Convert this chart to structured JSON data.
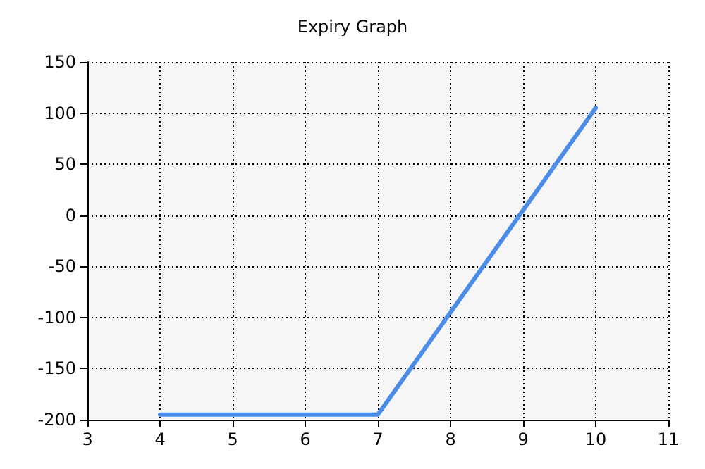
{
  "chart_data": {
    "type": "line",
    "title": "Expiry Graph",
    "x": [
      4,
      7,
      10
    ],
    "series": [
      {
        "color": "#4a8ce8",
        "values": [
          -195,
          -195,
          105
        ]
      }
    ],
    "xlim": [
      3,
      11
    ],
    "xticks": [
      3,
      4,
      5,
      6,
      7,
      8,
      9,
      10,
      11
    ],
    "ylim": [
      -200,
      150
    ],
    "yticks": [
      -200,
      -150,
      -100,
      -50,
      0,
      50,
      100,
      150
    ],
    "grid": true,
    "marker": "none",
    "line_style": "solid"
  }
}
